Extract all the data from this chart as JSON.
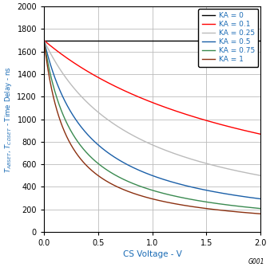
{
  "xlabel": "CS Voltage - V",
  "xlim": [
    0,
    2
  ],
  "ylim": [
    0,
    2000
  ],
  "xticks": [
    0,
    0.5,
    1,
    1.5,
    2
  ],
  "yticks": [
    0,
    200,
    400,
    600,
    800,
    1000,
    1200,
    1400,
    1600,
    1800,
    2000
  ],
  "grid_color": "#bbbbbb",
  "background_color": "#ffffff",
  "watermark": "G001",
  "KA_values": [
    0,
    0.1,
    0.25,
    0.5,
    0.75,
    1.0
  ],
  "KA_colors": [
    "#000000",
    "#ff0000",
    "#bbbbbb",
    "#1a5fa8",
    "#3a8a50",
    "#8b3010"
  ],
  "KA_labels": [
    "KA = 0",
    "KA = 0.1",
    "KA = 0.25",
    "KA = 0.5",
    "KA = 0.75",
    "KA = 1"
  ],
  "T0": 1700,
  "alpha": 4.8,
  "label_color": "#1a6bb5",
  "tick_color": "#000000",
  "legend_fontsize": 6.5,
  "axis_fontsize": 7.5,
  "tick_fontsize": 7.0
}
